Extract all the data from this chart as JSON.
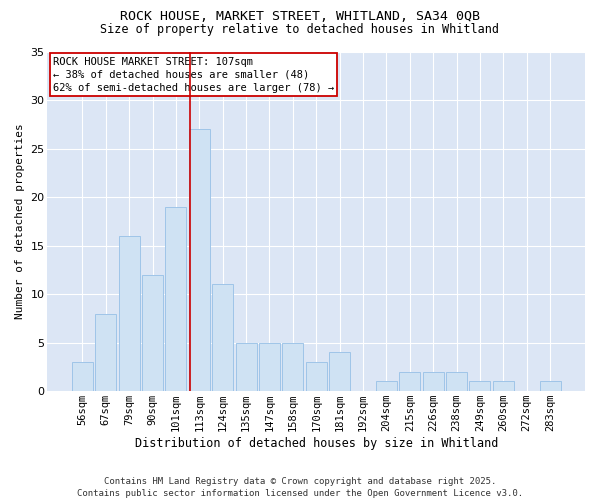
{
  "title1": "ROCK HOUSE, MARKET STREET, WHITLAND, SA34 0QB",
  "title2": "Size of property relative to detached houses in Whitland",
  "xlabel": "Distribution of detached houses by size in Whitland",
  "ylabel": "Number of detached properties",
  "categories": [
    "56sqm",
    "67sqm",
    "79sqm",
    "90sqm",
    "101sqm",
    "113sqm",
    "124sqm",
    "135sqm",
    "147sqm",
    "158sqm",
    "170sqm",
    "181sqm",
    "192sqm",
    "204sqm",
    "215sqm",
    "226sqm",
    "238sqm",
    "249sqm",
    "260sqm",
    "272sqm",
    "283sqm"
  ],
  "values": [
    3,
    8,
    16,
    12,
    19,
    27,
    11,
    5,
    5,
    5,
    3,
    4,
    0,
    1,
    2,
    2,
    2,
    1,
    1,
    0,
    1
  ],
  "bar_color": "#cfe2f3",
  "bar_edge_color": "#9fc5e8",
  "background_color": "#dce6f5",
  "figure_color": "#ffffff",
  "grid_color": "#ffffff",
  "annotation_box_text": "ROCK HOUSE MARKET STREET: 107sqm\n← 38% of detached houses are smaller (48)\n62% of semi-detached houses are larger (78) →",
  "vline_position": 4.62,
  "vline_color": "#cc0000",
  "ylim": [
    0,
    35
  ],
  "yticks": [
    0,
    5,
    10,
    15,
    20,
    25,
    30,
    35
  ],
  "footer_text": "Contains HM Land Registry data © Crown copyright and database right 2025.\nContains public sector information licensed under the Open Government Licence v3.0.",
  "title_fontsize": 9.5,
  "subtitle_fontsize": 8.5,
  "annotation_fontsize": 7.5,
  "axis_label_fontsize": 8,
  "tick_fontsize": 7.5,
  "footer_fontsize": 6.5
}
